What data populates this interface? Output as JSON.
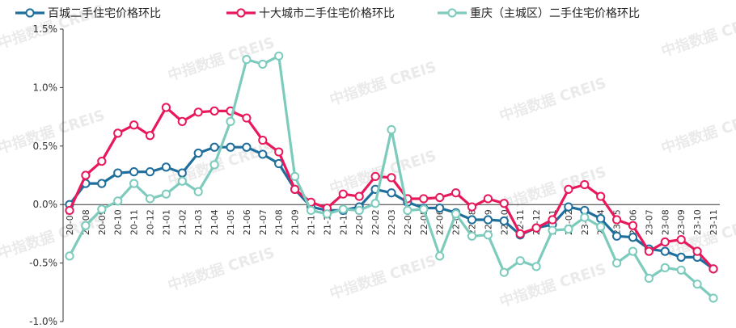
{
  "chart_data": {
    "type": "line",
    "legend_position": "top",
    "grid": false,
    "ylim": [
      -1.0,
      1.5
    ],
    "yticks": [
      -1.0,
      -0.5,
      0.0,
      0.5,
      1.0,
      1.5
    ],
    "ytick_labels": [
      "-1.0%",
      "-0.5%",
      "0.0%",
      "0.5%",
      "1.0%",
      "1.5%"
    ],
    "watermark": "中指数据 CREIS",
    "categories": [
      "20-07",
      "20-08",
      "20-09",
      "20-10",
      "20-11",
      "20-12",
      "21-01",
      "21-02",
      "21-03",
      "21-04",
      "21-05",
      "21-06",
      "21-07",
      "21-08",
      "21-09",
      "21-10",
      "21-11",
      "21-12",
      "22-01",
      "22-02",
      "22-03",
      "22-04",
      "22-05",
      "22-06",
      "22-07",
      "22-08",
      "22-09",
      "22-10",
      "22-11",
      "22-12",
      "23-01",
      "23-02",
      "23-03",
      "23-04",
      "23-05",
      "23-06",
      "23-07",
      "23-08",
      "23-09",
      "23-10",
      "23-11"
    ],
    "series": [
      {
        "name": "百城二手住宅价格环比",
        "color": "#1f6e9c",
        "values": [
          0.0,
          0.18,
          0.18,
          0.27,
          0.28,
          0.28,
          0.32,
          0.27,
          0.44,
          0.49,
          0.49,
          0.49,
          0.43,
          0.35,
          0.13,
          -0.02,
          -0.05,
          -0.05,
          -0.02,
          0.13,
          0.1,
          0.02,
          -0.03,
          -0.03,
          -0.07,
          -0.13,
          -0.13,
          -0.14,
          -0.26,
          -0.2,
          -0.17,
          -0.02,
          -0.05,
          -0.12,
          -0.27,
          -0.28,
          -0.38,
          -0.4,
          -0.45,
          -0.45,
          -0.55
        ]
      },
      {
        "name": "十大城市二手住宅价格环比",
        "color": "#e8185a",
        "values": [
          -0.05,
          0.25,
          0.37,
          0.61,
          0.68,
          0.59,
          0.83,
          0.71,
          0.79,
          0.8,
          0.8,
          0.74,
          0.55,
          0.45,
          0.13,
          0.02,
          -0.03,
          0.09,
          0.07,
          0.24,
          0.23,
          0.05,
          0.05,
          0.06,
          0.1,
          -0.02,
          0.05,
          0.01,
          -0.25,
          -0.2,
          -0.13,
          0.13,
          0.17,
          0.07,
          -0.13,
          -0.18,
          -0.4,
          -0.32,
          -0.3,
          -0.4,
          -0.55
        ]
      },
      {
        "name": "重庆（主城区）二手住宅价格环比",
        "color": "#7ccbbd",
        "values": [
          -0.44,
          -0.18,
          -0.04,
          0.03,
          0.18,
          0.05,
          0.09,
          0.2,
          0.11,
          0.34,
          0.71,
          1.24,
          1.2,
          1.27,
          0.24,
          -0.05,
          -0.08,
          -0.04,
          -0.05,
          0.01,
          0.64,
          -0.05,
          -0.04,
          -0.44,
          -0.08,
          -0.27,
          -0.26,
          -0.58,
          -0.48,
          -0.53,
          -0.22,
          -0.21,
          -0.11,
          -0.19,
          -0.5,
          -0.4,
          -0.63,
          -0.54,
          -0.56,
          -0.68,
          -0.8
        ]
      }
    ]
  }
}
